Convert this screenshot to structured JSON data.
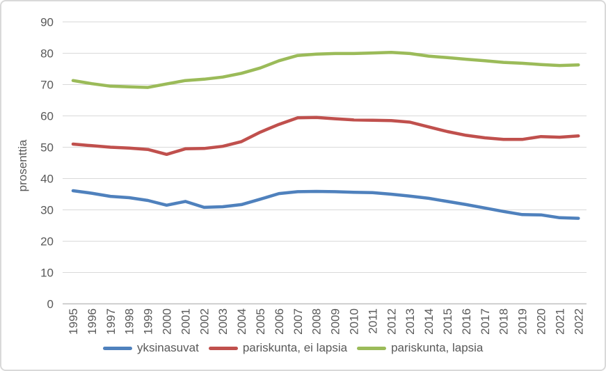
{
  "frame": {
    "background_color": "#ffffff",
    "border_color": "#d9d9d9"
  },
  "axes": {
    "gridline_color": "#d9d9d9",
    "axis_line_color": "#bfbfbf",
    "label_color": "#595959"
  },
  "chart_data": {
    "type": "line",
    "title": "",
    "xlabel": "",
    "ylabel": "prosenttia",
    "ylim": [
      0,
      90
    ],
    "yticks": [
      0,
      10,
      20,
      30,
      40,
      50,
      60,
      70,
      80,
      90
    ],
    "grid": true,
    "legend_position": "bottom",
    "x": [
      "1995",
      "1996",
      "1997",
      "1998",
      "1999",
      "2000",
      "2001",
      "2002",
      "2003",
      "2004",
      "2005",
      "2006",
      "2007",
      "2008",
      "2009",
      "2010",
      "2011",
      "2012",
      "2013",
      "2014",
      "2015",
      "2016",
      "2017",
      "2018",
      "2019",
      "2020",
      "2021",
      "2022"
    ],
    "series": [
      {
        "name": "yksinasuvat",
        "color": "#4F81BD",
        "values": [
          36.1,
          35.3,
          34.3,
          33.9,
          33.0,
          31.5,
          32.7,
          30.8,
          31.0,
          31.7,
          33.4,
          35.2,
          35.8,
          35.9,
          35.8,
          35.6,
          35.5,
          35.0,
          34.4,
          33.7,
          32.7,
          31.7,
          30.6,
          29.5,
          28.5,
          28.4,
          27.5,
          27.3
        ]
      },
      {
        "name": "pariskunta, ei lapsia",
        "color": "#C0504D",
        "values": [
          51.0,
          50.5,
          50.0,
          49.7,
          49.3,
          47.7,
          49.5,
          49.6,
          50.3,
          51.8,
          54.8,
          57.3,
          59.4,
          59.5,
          59.1,
          58.7,
          58.6,
          58.5,
          58.0,
          56.5,
          55.0,
          53.8,
          53.0,
          52.5,
          52.5,
          53.4,
          53.2,
          53.6
        ]
      },
      {
        "name": "pariskunta, lapsia",
        "color": "#9BBB59",
        "values": [
          71.3,
          70.3,
          69.5,
          69.3,
          69.1,
          70.2,
          71.3,
          71.7,
          72.4,
          73.6,
          75.3,
          77.6,
          79.3,
          79.7,
          79.9,
          79.9,
          80.1,
          80.3,
          79.9,
          79.1,
          78.6,
          78.1,
          77.6,
          77.1,
          76.8,
          76.4,
          76.1,
          76.3
        ]
      }
    ]
  }
}
